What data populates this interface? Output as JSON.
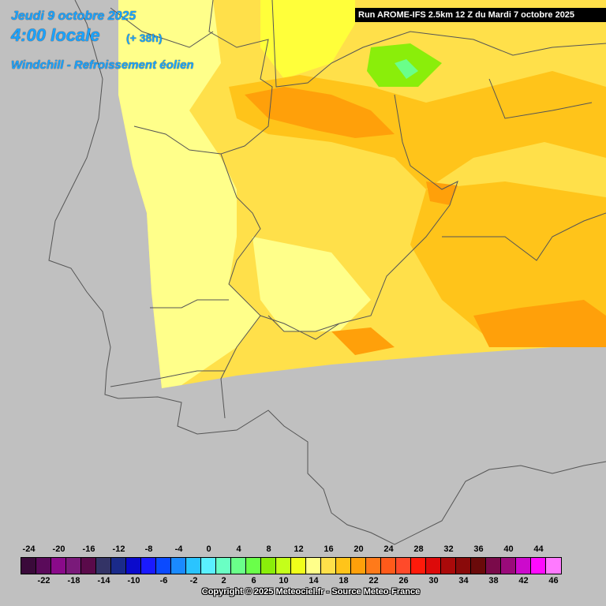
{
  "header": {
    "date": "Jeudi 9 octobre 2025",
    "time": "4:00 locale",
    "offset": "(+ 38h)",
    "parameter": "Windchill - Refroissement éolien"
  },
  "run_info": "Run AROME-IFS 2.5km 12 Z du Mardi 7 octobre 2025",
  "legend": {
    "values": [
      -24,
      -22,
      -20,
      -18,
      -16,
      -14,
      -12,
      -10,
      -8,
      -6,
      -4,
      -2,
      0,
      2,
      4,
      6,
      8,
      10,
      12,
      14,
      16,
      18,
      20,
      22,
      24,
      26,
      28,
      30,
      32,
      34,
      36,
      38,
      40,
      42,
      44,
      46
    ],
    "colors": [
      "#3a0a3a",
      "#5a0a5a",
      "#8a0a8a",
      "#7a1a7a",
      "#5a0a4a",
      "#333366",
      "#1a2a8a",
      "#0a0acc",
      "#1a1aff",
      "#0a4aff",
      "#1a8aff",
      "#2ac4ff",
      "#5af0ff",
      "#6affc4",
      "#6aff8a",
      "#6aff4a",
      "#8aee0a",
      "#c4ff1a",
      "#f0ff1a",
      "#ffff8a",
      "#ffe04a",
      "#ffc41a",
      "#ffa00a",
      "#ff7a1a",
      "#ff5a1a",
      "#ff4a2a",
      "#ff1a0a",
      "#dd0a0a",
      "#aa0a0a",
      "#8a0a0a",
      "#6a0a0a",
      "#7a0a4a",
      "#9a0a7a",
      "#cc0acc",
      "#ff0aff",
      "#ff7aff"
    ]
  },
  "copyright": "Copyright © 2025 Meteociel.fr - Source Meteo-France",
  "map_colors": {
    "sea": "#c0c0c0",
    "temp_14": "#ffff8a",
    "temp_16": "#ffe04a",
    "temp_18": "#ffc41a",
    "temp_20": "#ffa00a",
    "temp_10": "#c4ff1a",
    "border": "#555555"
  }
}
